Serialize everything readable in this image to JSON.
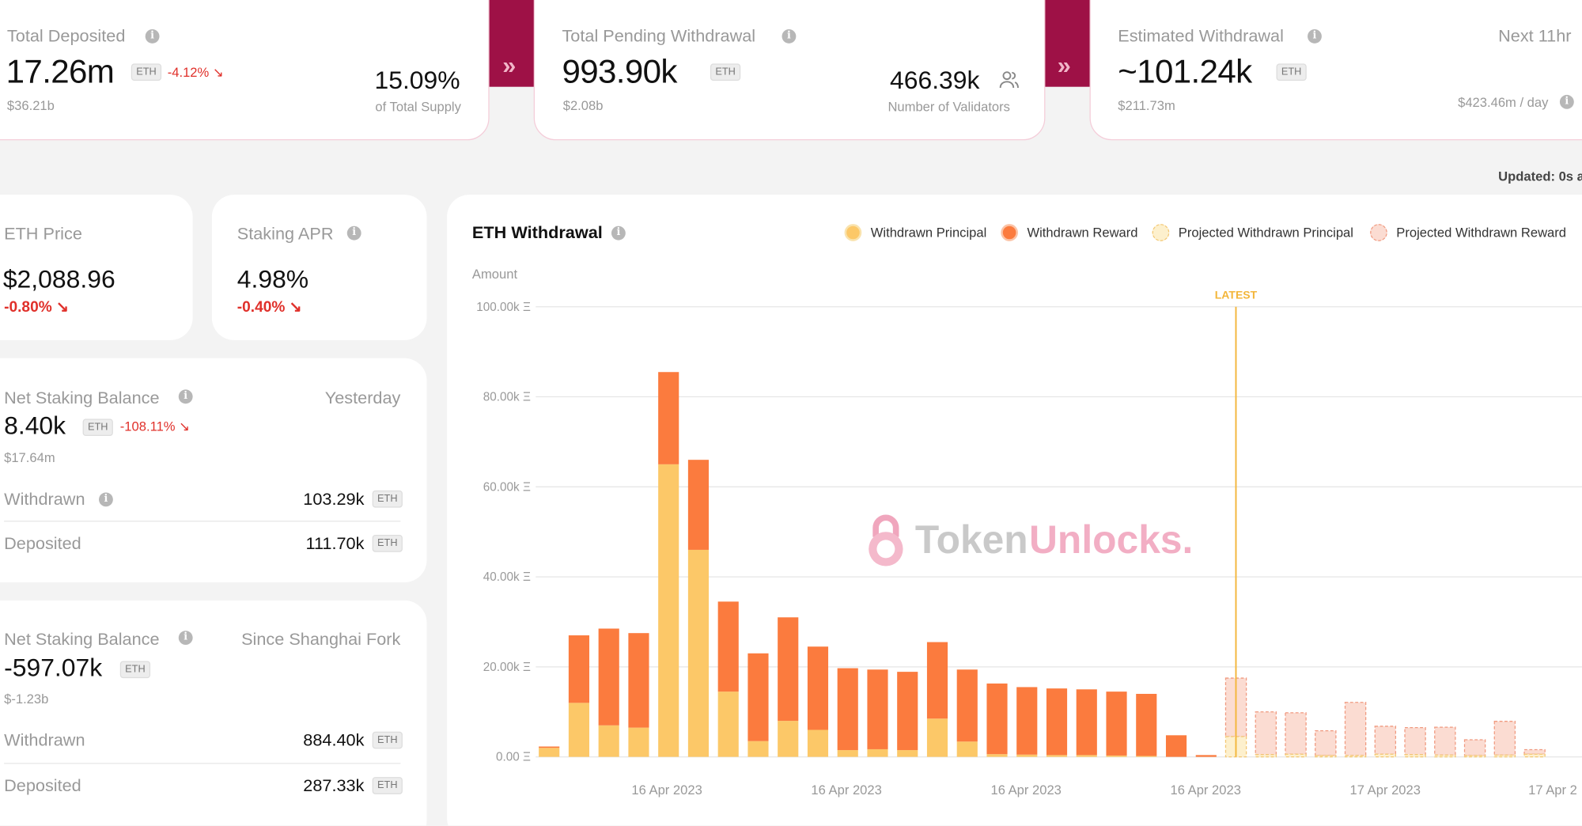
{
  "top": {
    "deposited": {
      "label": "Total Deposited",
      "value": "17.26m",
      "unit": "ETH",
      "change": "-4.12% ↘",
      "usd": "$36.21b",
      "side_value": "15.09%",
      "side_label": "of Total Supply"
    },
    "pending": {
      "label": "Total Pending Withdrawal",
      "value": "993.90k",
      "unit": "ETH",
      "usd": "$2.08b",
      "side_value": "466.39k",
      "side_label": "Number of Validators"
    },
    "estimated": {
      "label": "Estimated Withdrawal",
      "value": "~101.24k",
      "unit": "ETH",
      "usd": "$211.73m",
      "period": "Next 11hr",
      "per_day": "$423.46m / day"
    }
  },
  "updated": "Updated: 0s a",
  "price": {
    "label": "ETH Price",
    "value": "$2,088.96",
    "change": "-0.80% ↘"
  },
  "apr": {
    "label": "Staking APR",
    "value": "4.98%",
    "change": "-0.40% ↘"
  },
  "net1": {
    "label": "Net Staking Balance",
    "period": "Yesterday",
    "value": "8.40k",
    "unit": "ETH",
    "change": "-108.11% ↘",
    "usd": "$17.64m",
    "withdrawn_label": "Withdrawn",
    "withdrawn_value": "103.29k",
    "deposited_label": "Deposited",
    "deposited_value": "111.70k"
  },
  "net2": {
    "label": "Net Staking Balance",
    "period": "Since Shanghai Fork",
    "value": "-597.07k",
    "unit": "ETH",
    "usd": "$-1.23b",
    "withdrawn_label": "Withdrawn",
    "withdrawn_value": "884.40k",
    "deposited_label": "Deposited",
    "deposited_value": "287.33k"
  },
  "chart_title": "ETH Withdrawal",
  "watermark": {
    "a": "Token",
    "b": "Unlocks."
  },
  "colors": {
    "principal": "#fcc868",
    "reward": "#fb7b3e",
    "proj_principal": "#fdf0cd",
    "proj_reward": "#fbdcd2",
    "brand": "#9e1146",
    "latest": "#f3b63a"
  },
  "chart_data": {
    "type": "bar",
    "stacked": true,
    "ylabel": "Amount",
    "ylim": [
      0,
      100000
    ],
    "yticks": [
      "100.00k Ξ",
      "80.00k Ξ",
      "60.00k Ξ",
      "40.00k Ξ",
      "20.00k Ξ",
      "0.00 Ξ"
    ],
    "xticks": [
      "16 Apr 2023",
      "16 Apr 2023",
      "16 Apr 2023",
      "16 Apr 2023",
      "17 Apr 2023",
      "17 Apr 2"
    ],
    "marker": "LATEST",
    "series": [
      {
        "name": "Withdrawn Principal",
        "values": [
          2000,
          12000,
          7000,
          6500,
          65000,
          46000,
          14500,
          3500,
          8000,
          6000,
          1500,
          1700,
          1500,
          8500,
          3400,
          600,
          500,
          400,
          400,
          300,
          200,
          0,
          0
        ]
      },
      {
        "name": "Withdrawn Reward",
        "values": [
          300,
          15000,
          21500,
          21000,
          20500,
          20000,
          20000,
          19500,
          23000,
          18500,
          18200,
          17700,
          17400,
          17000,
          16000,
          15700,
          15000,
          14800,
          14600,
          14200,
          13800,
          4800,
          400
        ]
      },
      {
        "name": "Projected Withdrawn Principal",
        "values": [
          4500,
          500,
          600,
          300,
          300,
          600,
          500,
          400,
          300,
          400,
          600
        ]
      },
      {
        "name": "Projected Withdrawn Reward",
        "values": [
          13000,
          9500,
          9200,
          5500,
          11800,
          6200,
          6000,
          6200,
          3500,
          7500,
          1000
        ]
      }
    ]
  }
}
